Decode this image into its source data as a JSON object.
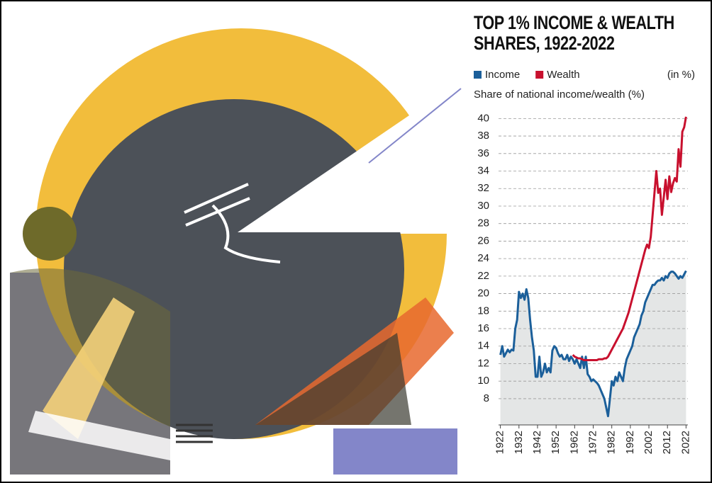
{
  "chart_data": {
    "type": "line",
    "title": "TOP 1% INCOME & WEALTH SHARES, 1922-2022",
    "unit_note": "(in %)",
    "y_axis_label": "Share of national income/wealth (%)",
    "x": [
      1922,
      1923,
      1924,
      1925,
      1926,
      1927,
      1928,
      1929,
      1930,
      1931,
      1932,
      1933,
      1934,
      1935,
      1936,
      1937,
      1938,
      1939,
      1940,
      1941,
      1942,
      1943,
      1944,
      1945,
      1946,
      1947,
      1948,
      1949,
      1950,
      1951,
      1952,
      1953,
      1954,
      1955,
      1956,
      1957,
      1958,
      1959,
      1960,
      1961,
      1962,
      1963,
      1964,
      1965,
      1966,
      1967,
      1968,
      1969,
      1970,
      1971,
      1972,
      1973,
      1974,
      1975,
      1976,
      1977,
      1978,
      1979,
      1980,
      1981,
      1982,
      1983,
      1984,
      1985,
      1986,
      1987,
      1988,
      1989,
      1990,
      1991,
      1992,
      1993,
      1994,
      1995,
      1996,
      1997,
      1998,
      1999,
      2000,
      2001,
      2002,
      2003,
      2004,
      2005,
      2006,
      2007,
      2008,
      2009,
      2010,
      2011,
      2012,
      2013,
      2014,
      2015,
      2016,
      2017,
      2018,
      2019,
      2020,
      2021,
      2022
    ],
    "series": [
      {
        "name": "Income",
        "color": "#1b5f9a",
        "fill": "#e4e6e6",
        "values": [
          13.0,
          14.0,
          12.8,
          13.2,
          13.6,
          13.3,
          13.6,
          13.5,
          16.0,
          17.0,
          20.2,
          19.5,
          20.0,
          19.3,
          20.5,
          19.5,
          17.0,
          15.0,
          13.5,
          10.5,
          10.5,
          12.8,
          10.5,
          11.0,
          12.0,
          11.0,
          11.5,
          11.0,
          13.5,
          14.0,
          13.8,
          13.2,
          12.8,
          13.0,
          12.5,
          12.5,
          13.0,
          12.3,
          12.8,
          12.5,
          12.0,
          12.5,
          12.0,
          11.5,
          12.8,
          11.5,
          12.8,
          10.8,
          10.5,
          10.0,
          10.2,
          10.0,
          9.8,
          9.5,
          9.0,
          8.5,
          8.0,
          7.0,
          6.0,
          8.0,
          10.0,
          9.5,
          10.5,
          10.0,
          11.0,
          10.5,
          10.0,
          11.5,
          12.5,
          13.0,
          13.5,
          14.0,
          15.0,
          15.5,
          16.0,
          16.5,
          17.5,
          18.0,
          19.0,
          19.5,
          20.0,
          20.5,
          21.0,
          21.0,
          21.3,
          21.5,
          21.5,
          21.8,
          21.5,
          22.0,
          21.8,
          22.3,
          22.5,
          22.5,
          22.3,
          22.0,
          21.7,
          22.0,
          21.8,
          22.2,
          22.6
        ]
      },
      {
        "name": "Wealth",
        "color": "#c8102e",
        "values": [
          null,
          null,
          null,
          null,
          null,
          null,
          null,
          null,
          null,
          null,
          null,
          null,
          null,
          null,
          null,
          null,
          null,
          null,
          null,
          null,
          null,
          null,
          null,
          null,
          null,
          null,
          null,
          null,
          null,
          null,
          null,
          null,
          null,
          null,
          null,
          null,
          null,
          null,
          null,
          13.0,
          12.8,
          12.7,
          12.6,
          12.6,
          12.5,
          12.4,
          12.4,
          12.4,
          12.4,
          12.4,
          12.4,
          12.4,
          12.4,
          12.5,
          12.5,
          12.5,
          12.6,
          12.6,
          12.8,
          13.2,
          13.6,
          14.0,
          14.4,
          14.8,
          15.2,
          15.6,
          16.0,
          16.6,
          17.2,
          17.8,
          18.6,
          19.4,
          20.2,
          21.0,
          21.8,
          22.6,
          23.4,
          24.2,
          25.0,
          25.6,
          25.2,
          26.5,
          29.0,
          31.5,
          34.0,
          31.5,
          32.0,
          29.0,
          31.0,
          33.0,
          30.8,
          33.4,
          31.6,
          32.6,
          33.2,
          32.8,
          36.5,
          34.5,
          38.5,
          39.0,
          40.2
        ]
      }
    ],
    "xlim": [
      1921,
      2023
    ],
    "xticks": [
      1922,
      1932,
      1942,
      1952,
      1962,
      1972,
      1982,
      1992,
      2002,
      2012,
      2022
    ],
    "ylim": [
      5,
      41
    ],
    "yticks": [
      8,
      10,
      12,
      14,
      16,
      18,
      20,
      22,
      24,
      26,
      28,
      30,
      32,
      34,
      36,
      38,
      40
    ],
    "grid": true
  }
}
